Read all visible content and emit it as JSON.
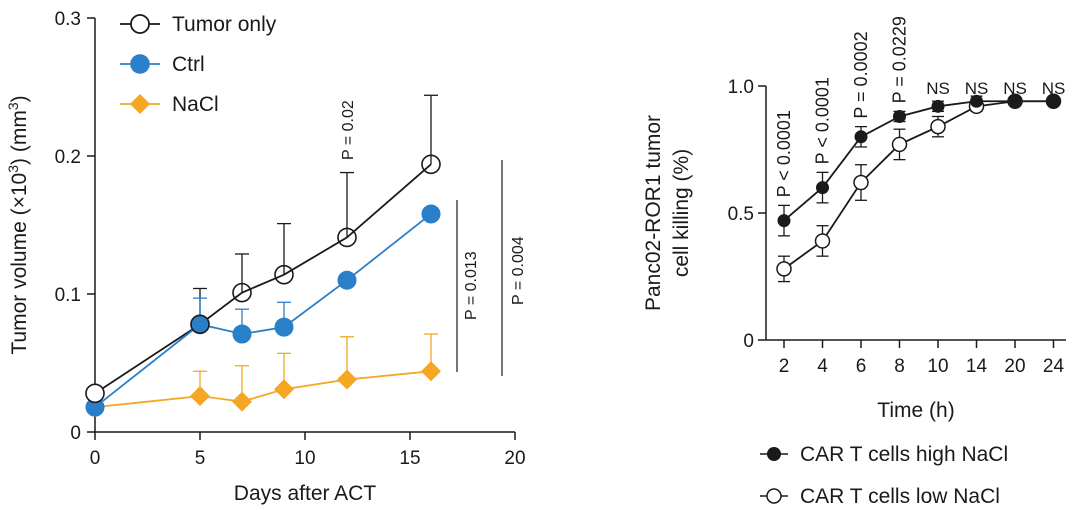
{
  "chart_data": [
    {
      "type": "line",
      "xlabel": "Days after ACT",
      "ylabel": "Tumor volume (×10³) (mm³)",
      "ylabel_parts": [
        "Tumor volume (×10",
        "3",
        ") (mm",
        "3",
        ")"
      ],
      "xlim": [
        0,
        20
      ],
      "ylim": [
        0,
        0.3
      ],
      "xticks": [
        "0",
        "5",
        "10",
        "15",
        "20"
      ],
      "yticks": [
        "0",
        "0.1",
        "0.2",
        "0.3"
      ],
      "legend_position": "top-left",
      "series": [
        {
          "name": "Tumor only",
          "marker": "open-circle",
          "color": "#1a1a1a",
          "x": [
            0,
            5,
            7,
            9,
            12,
            16
          ],
          "y": [
            0.028,
            0.078,
            0.101,
            0.114,
            0.141,
            0.194
          ],
          "err": [
            0,
            0.026,
            0.028,
            0.037,
            0.047,
            0.05
          ]
        },
        {
          "name": "Ctrl",
          "marker": "filled-circle",
          "color": "#2a7fc9",
          "x": [
            0,
            5,
            7,
            9,
            12,
            16
          ],
          "y": [
            0.018,
            0.078,
            0.071,
            0.076,
            0.11,
            0.158
          ],
          "err": [
            0,
            0.019,
            0.018,
            0.018,
            0,
            0
          ]
        },
        {
          "name": "NaCl",
          "marker": "diamond",
          "color": "#f5a623",
          "x": [
            0,
            5,
            7,
            9,
            12,
            16
          ],
          "y": [
            0.018,
            0.026,
            0.022,
            0.031,
            0.038,
            0.044
          ],
          "err": [
            0,
            0.018,
            0.026,
            0.026,
            0.031,
            0.027
          ]
        }
      ],
      "annotations": [
        {
          "text": "P = 0.02",
          "at_x": 12,
          "at_y": 0.23
        },
        {
          "text": "P = 0.013",
          "comparison": "Ctrl vs NaCl",
          "y_range": [
            0.044,
            0.166
          ]
        },
        {
          "text": "P = 0.004",
          "comparison": "Tumor only vs NaCl",
          "y_range": [
            0.044,
            0.2
          ]
        }
      ]
    },
    {
      "type": "line",
      "xlabel": "Time (h)",
      "ylabel_lines": [
        "Panc02-ROR1 tumor",
        "cell killing (%)"
      ],
      "categories": [
        "2",
        "4",
        "6",
        "8",
        "10",
        "14",
        "20",
        "24"
      ],
      "ylim": [
        0,
        1.0
      ],
      "yticks": [
        "0",
        "0.5",
        "1.0"
      ],
      "legend_position": "bottom",
      "series": [
        {
          "name": "CAR T cells high NaCl",
          "marker": "filled-circle",
          "color": "#1a1a1a",
          "values": [
            0.47,
            0.6,
            0.8,
            0.88,
            0.92,
            0.94,
            0.94,
            0.94
          ],
          "err": [
            0.06,
            0.06,
            0.04,
            0.02,
            0.02,
            0.02,
            0.01,
            0.01
          ]
        },
        {
          "name": "CAR T cells low NaCl",
          "marker": "open-circle",
          "color": "#1a1a1a",
          "values": [
            0.28,
            0.39,
            0.62,
            0.77,
            0.84,
            0.92,
            0.94,
            0.94
          ],
          "err": [
            0.05,
            0.06,
            0.07,
            0.06,
            0.04,
            0.02,
            0.01,
            0.01
          ]
        }
      ],
      "annotations": [
        "P < 0.0001",
        "P < 0.0001",
        "P = 0.0002",
        "P = 0.0229",
        "NS",
        "NS",
        "NS",
        "NS"
      ]
    }
  ]
}
